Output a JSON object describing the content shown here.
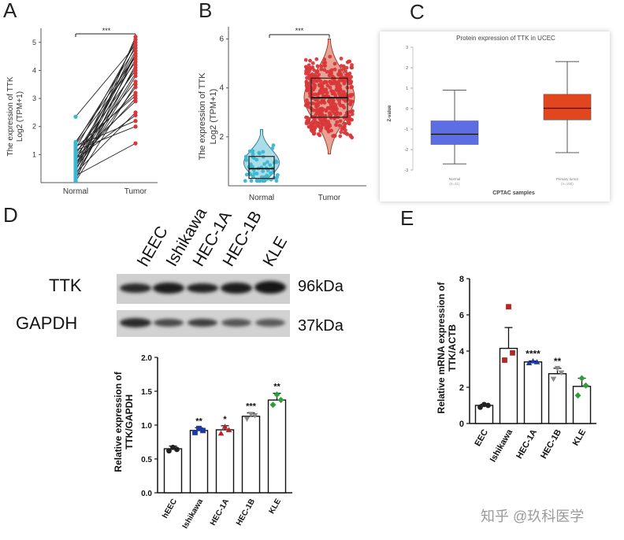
{
  "panel_labels": {
    "a": "A",
    "b": "B",
    "c": "C",
    "d": "D",
    "e": "E"
  },
  "sig": {
    "three": "***",
    "four": "****",
    "two": "**",
    "one": "*"
  },
  "watermark": "知乎 @玖科医学",
  "colors": {
    "red": "#d9383a",
    "cyan": "#3cb6d2",
    "violin_red": "#e8a394",
    "violin_cyan": "#a9dde8",
    "box_red": "#e2461f",
    "box_blue": "#5d6de4",
    "d_black": "#222222",
    "d_blue": "#1f3a9e",
    "d_red": "#b42626",
    "d_gray": "#8a8a8a",
    "d_green": "#2d9e3a"
  },
  "blot": {
    "lanes": [
      "hEEC",
      "Ishikawa",
      "HEC-1A",
      "HEC-1B",
      "KLE"
    ],
    "rows": [
      {
        "name": "TTK",
        "kda": "96kDa"
      },
      {
        "name": "GAPDH",
        "kda": "37kDa"
      }
    ]
  },
  "chart_data": [
    {
      "panel": "A",
      "type": "scatter",
      "subtype": "paired",
      "ylabel_line1": "The expression of TTK",
      "ylabel_line2": "Log2 (TPM+1)",
      "categories": [
        "Normal",
        "Tumor"
      ],
      "ylim": [
        0,
        5.5
      ],
      "yticks": [
        1,
        2,
        3,
        4,
        5
      ],
      "significance": "***",
      "pairs": [
        [
          0.1,
          4.6
        ],
        [
          0.2,
          5.2
        ],
        [
          0.3,
          3.8
        ],
        [
          0.4,
          4.9
        ],
        [
          0.5,
          3.4
        ],
        [
          0.6,
          4.4
        ],
        [
          0.7,
          3.0
        ],
        [
          0.8,
          4.7
        ],
        [
          0.9,
          2.9
        ],
        [
          1.0,
          4.5
        ],
        [
          1.1,
          3.2
        ],
        [
          1.2,
          5.0
        ],
        [
          1.3,
          2.2
        ],
        [
          1.4,
          4.8
        ],
        [
          0.35,
          2.5
        ],
        [
          0.55,
          4.1
        ],
        [
          0.75,
          5.1
        ],
        [
          0.95,
          3.6
        ],
        [
          1.15,
          2.0
        ],
        [
          1.35,
          4.3
        ],
        [
          0.25,
          1.4
        ],
        [
          0.45,
          3.9
        ],
        [
          0.65,
          4.6
        ],
        [
          0.85,
          2.4
        ],
        [
          1.05,
          4.0
        ],
        [
          1.25,
          3.1
        ],
        [
          0.15,
          4.2
        ],
        [
          2.35,
          4.9
        ],
        [
          1.45,
          4.5
        ],
        [
          0.05,
          3.5
        ]
      ]
    },
    {
      "panel": "B",
      "type": "violin",
      "ylabel_line1": "The expression of TTK",
      "ylabel_line2": "Log2 (TPM+1)",
      "categories": [
        "Normal",
        "Tumor"
      ],
      "ylim": [
        0,
        6.5
      ],
      "yticks": [
        2,
        4,
        6
      ],
      "significance": "***",
      "normal": {
        "min": 0.2,
        "q1": 0.3,
        "median": 0.7,
        "q3": 1.2,
        "max": 2.3
      },
      "tumor": {
        "min": 1.3,
        "q1": 2.8,
        "median": 3.6,
        "q3": 4.4,
        "max": 6.0
      }
    },
    {
      "panel": "C",
      "type": "box",
      "title": "Protein expression of TTK in UCEC",
      "ylabel": "Z-value",
      "xlabel": "CPTAC samples",
      "ylim": [
        -3,
        3
      ],
      "yticks": [
        3,
        2,
        1,
        0,
        -1,
        -2,
        -3
      ],
      "categories": [
        "Normal",
        "Primary tumor"
      ],
      "category_notes": [
        "(n=31)",
        "(n=100)"
      ],
      "boxes": [
        {
          "min": -2.7,
          "q1": -1.75,
          "median": -1.25,
          "q3": -0.6,
          "max": 0.9
        },
        {
          "min": -2.15,
          "q1": -0.55,
          "median": 0.02,
          "q3": 0.7,
          "max": 2.3
        }
      ]
    },
    {
      "panel": "D",
      "type": "bar",
      "ylabel_line1": "Relative expression of",
      "ylabel_line2": "TTK/GAPDH",
      "categories": [
        "hEEC",
        "Ishikawa",
        "HEC-1A",
        "HEC-1B",
        "KLE"
      ],
      "values": [
        0.65,
        0.92,
        0.93,
        1.13,
        1.37
      ],
      "errors": [
        0.04,
        0.04,
        0.06,
        0.05,
        0.1
      ],
      "points": [
        [
          0.62,
          0.67,
          0.64
        ],
        [
          0.89,
          0.95,
          0.92
        ],
        [
          0.88,
          0.98,
          0.93
        ],
        [
          1.09,
          1.16,
          1.14
        ],
        [
          1.3,
          1.45,
          1.37
        ]
      ],
      "significance": [
        "",
        "**",
        "*",
        "***",
        "**"
      ],
      "ylim": [
        0,
        2.0
      ],
      "yticks": [
        "0.0",
        "0.5",
        "1.0",
        "1.5",
        "2.0"
      ]
    },
    {
      "panel": "E",
      "type": "bar",
      "ylabel_line1": "Relative mRNA expression of",
      "ylabel_line2": "TTK/ACTB",
      "categories": [
        "EEC",
        "Ishikawa",
        "HEC-1A",
        "HEC-1B",
        "KLE"
      ],
      "values": [
        1.0,
        4.15,
        3.4,
        2.75,
        2.05
      ],
      "errors": [
        0.06,
        1.15,
        0.05,
        0.3,
        0.45
      ],
      "points": [
        [
          0.9,
          1.05,
          1.0
        ],
        [
          3.5,
          6.45,
          3.9
        ],
        [
          3.35,
          3.45,
          3.4
        ],
        [
          2.45,
          3.05,
          2.8
        ],
        [
          1.55,
          2.5,
          2.1
        ]
      ],
      "significance": [
        "",
        "",
        "****",
        "**",
        ""
      ],
      "ylim": [
        0,
        8
      ],
      "yticks": [
        "0",
        "2",
        "4",
        "6",
        "8"
      ]
    }
  ]
}
